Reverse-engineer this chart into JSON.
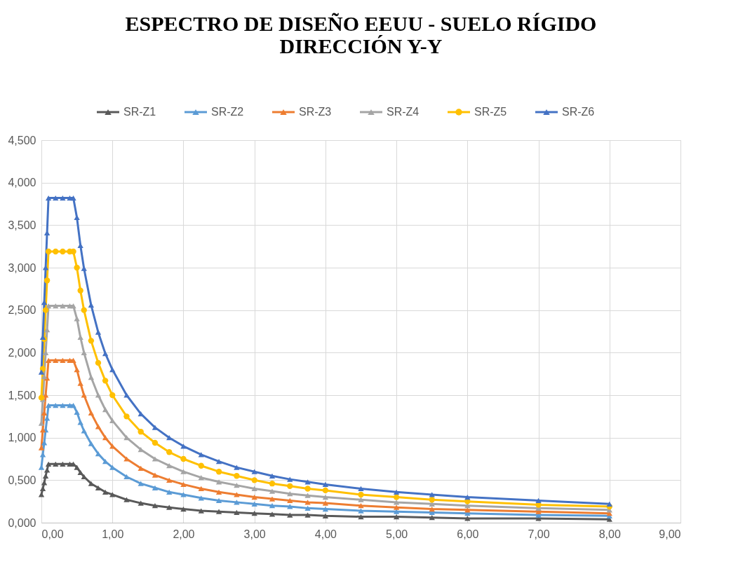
{
  "chart_data": {
    "type": "line",
    "title": "ESPECTRO DE DISEÑO EEUU - SUELO RÍGIDO\nDIRECCIÓN Y-Y",
    "x": [
      0,
      0.02,
      0.04,
      0.06,
      0.08,
      0.1,
      0.2,
      0.3,
      0.4,
      0.45,
      0.5,
      0.55,
      0.6,
      0.7,
      0.8,
      0.9,
      1.0,
      1.2,
      1.4,
      1.6,
      1.8,
      2.0,
      2.25,
      2.5,
      2.75,
      3.0,
      3.25,
      3.5,
      3.75,
      4.0,
      4.5,
      5,
      5.5,
      6,
      7,
      8
    ],
    "series": [
      {
        "name": "SR-Z1",
        "color": "#595959",
        "marker": "triangle",
        "values": [
          0.33,
          0.4,
          0.47,
          0.55,
          0.62,
          0.69,
          0.69,
          0.69,
          0.69,
          0.69,
          0.65,
          0.59,
          0.54,
          0.46,
          0.41,
          0.36,
          0.33,
          0.27,
          0.23,
          0.2,
          0.18,
          0.16,
          0.14,
          0.13,
          0.12,
          0.11,
          0.1,
          0.09,
          0.09,
          0.08,
          0.07,
          0.07,
          0.06,
          0.05,
          0.05,
          0.04
        ]
      },
      {
        "name": "SR-Z2",
        "color": "#5b9bd5",
        "marker": "triangle",
        "values": [
          0.65,
          0.8,
          0.94,
          1.09,
          1.23,
          1.38,
          1.38,
          1.38,
          1.38,
          1.38,
          1.3,
          1.18,
          1.08,
          0.93,
          0.81,
          0.72,
          0.65,
          0.54,
          0.46,
          0.41,
          0.36,
          0.33,
          0.29,
          0.26,
          0.24,
          0.22,
          0.2,
          0.19,
          0.17,
          0.16,
          0.14,
          0.13,
          0.12,
          0.11,
          0.09,
          0.08
        ]
      },
      {
        "name": "SR-Z3",
        "color": "#ed7d31",
        "marker": "triangle",
        "values": [
          0.88,
          1.09,
          1.29,
          1.5,
          1.7,
          1.91,
          1.91,
          1.91,
          1.91,
          1.91,
          1.8,
          1.64,
          1.5,
          1.29,
          1.13,
          1.0,
          0.9,
          0.75,
          0.64,
          0.56,
          0.5,
          0.45,
          0.4,
          0.36,
          0.33,
          0.3,
          0.28,
          0.26,
          0.24,
          0.23,
          0.2,
          0.18,
          0.16,
          0.15,
          0.13,
          0.11
        ]
      },
      {
        "name": "SR-Z4",
        "color": "#a5a5a5",
        "marker": "triangle",
        "values": [
          1.17,
          1.45,
          1.72,
          2.0,
          2.27,
          2.55,
          2.55,
          2.55,
          2.55,
          2.55,
          2.4,
          2.18,
          2.0,
          1.71,
          1.5,
          1.33,
          1.2,
          1.0,
          0.86,
          0.75,
          0.67,
          0.6,
          0.53,
          0.48,
          0.44,
          0.4,
          0.37,
          0.34,
          0.32,
          0.3,
          0.27,
          0.24,
          0.22,
          0.2,
          0.17,
          0.15
        ]
      },
      {
        "name": "SR-Z5",
        "color": "#ffc000",
        "marker": "circle",
        "values": [
          1.47,
          1.81,
          2.16,
          2.5,
          2.85,
          3.19,
          3.19,
          3.19,
          3.19,
          3.19,
          3.0,
          2.73,
          2.5,
          2.14,
          1.88,
          1.67,
          1.5,
          1.25,
          1.07,
          0.94,
          0.83,
          0.75,
          0.67,
          0.6,
          0.55,
          0.5,
          0.46,
          0.43,
          0.4,
          0.38,
          0.33,
          0.3,
          0.27,
          0.25,
          0.21,
          0.19
        ]
      },
      {
        "name": "SR-Z6",
        "color": "#4472c4",
        "marker": "triangle",
        "values": [
          1.77,
          2.18,
          2.59,
          3.0,
          3.41,
          3.82,
          3.82,
          3.82,
          3.82,
          3.82,
          3.59,
          3.26,
          2.99,
          2.56,
          2.24,
          1.99,
          1.8,
          1.5,
          1.28,
          1.12,
          1.0,
          0.9,
          0.8,
          0.72,
          0.65,
          0.6,
          0.55,
          0.51,
          0.48,
          0.45,
          0.4,
          0.36,
          0.33,
          0.3,
          0.26,
          0.22
        ]
      }
    ],
    "xlim": [
      0,
      9
    ],
    "xticks": [
      {
        "value": 0,
        "label": "0,00"
      },
      {
        "value": 1,
        "label": "1,00"
      },
      {
        "value": 2,
        "label": "2,00"
      },
      {
        "value": 3,
        "label": "3,00"
      },
      {
        "value": 4,
        "label": "4,00"
      },
      {
        "value": 5,
        "label": "5,00"
      },
      {
        "value": 6,
        "label": "6,00"
      },
      {
        "value": 7,
        "label": "7,00"
      },
      {
        "value": 8,
        "label": "8,00"
      },
      {
        "value": 9,
        "label": "9,00"
      }
    ],
    "ylim": [
      0,
      4.5
    ],
    "yticks": [
      {
        "value": 0,
        "label": "0,000"
      },
      {
        "value": 0.5,
        "label": "0,500"
      },
      {
        "value": 1,
        "label": "1,000"
      },
      {
        "value": 1.5,
        "label": "1,500"
      },
      {
        "value": 2,
        "label": "2,000"
      },
      {
        "value": 2.5,
        "label": "2,500"
      },
      {
        "value": 3,
        "label": "3,000"
      },
      {
        "value": 3.5,
        "label": "3,500"
      },
      {
        "value": 4,
        "label": "4,000"
      },
      {
        "value": 4.5,
        "label": "4,500"
      }
    ],
    "grid": true,
    "legend": "top",
    "line_style": "solid"
  }
}
